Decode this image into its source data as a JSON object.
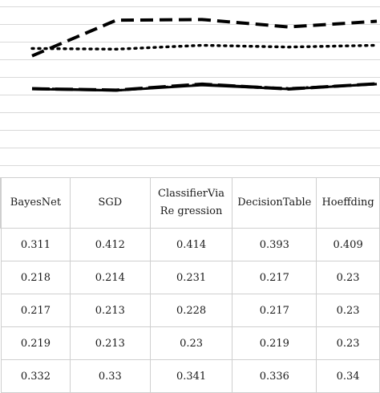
{
  "chart_data": {
    "type": "line",
    "categories": [
      "BayesNet",
      "SGD",
      "ClassifierViaRegression",
      "DecisionTable",
      "Hoeffding"
    ],
    "header_labels": [
      "BayesNet",
      "SGD",
      "ClassifierViaRe gression",
      "DecisionTable",
      "Hoeffding"
    ],
    "series": [
      {
        "values": [
          0.311,
          0.412,
          0.414,
          0.393,
          0.409
        ],
        "style": "dashed",
        "color": "#000000"
      },
      {
        "values": [
          0.218,
          0.214,
          0.231,
          0.217,
          0.232
        ],
        "style": "long-dash",
        "color": "#000000"
      },
      {
        "values": [
          0.217,
          0.213,
          0.228,
          0.217,
          0.231
        ],
        "style": "solid",
        "color": "#000000"
      },
      {
        "values": [
          0.219,
          0.213,
          0.23,
          0.219,
          0.231
        ],
        "style": "dash-dot",
        "color": "#000000"
      },
      {
        "values": [
          0.332,
          0.33,
          0.341,
          0.336,
          0.341
        ],
        "style": "dotted",
        "color": "#000000"
      }
    ],
    "visible_rows": [
      [
        "0.311",
        "0.412",
        "0.414",
        "0.393",
        "0.409"
      ],
      [
        "0.218",
        "0.214",
        "0.231",
        "0.217",
        "0.23"
      ],
      [
        "0.217",
        "0.213",
        "0.228",
        "0.217",
        "0.23"
      ],
      [
        "0.219",
        "0.213",
        "0.23",
        "0.219",
        "0.23"
      ],
      [
        "0.332",
        "0.33",
        "0.341",
        "0.336",
        "0.34"
      ]
    ],
    "ylim": [
      0.0,
      0.45
    ],
    "grid": true,
    "line_color": "#000000",
    "grid_color": "#d9d9d9",
    "border_color": "#cfcfcf"
  }
}
